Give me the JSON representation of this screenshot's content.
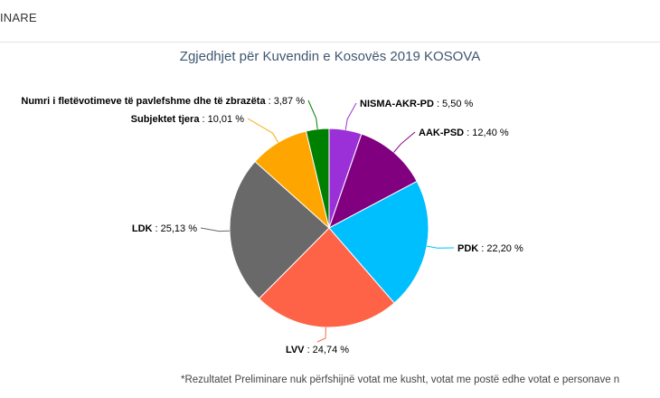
{
  "header": {
    "tab_label": "INARE"
  },
  "chart_data": {
    "type": "pie",
    "title": "Zgjedhjet për Kuvendin e Kosovës 2019 KOSOVA",
    "unit": "%",
    "slices": [
      {
        "name": "NISMA-AKR-PD",
        "value": 5.5,
        "value_label": "5,50 %",
        "color": "#9b30d9"
      },
      {
        "name": "AAK-PSD",
        "value": 12.4,
        "value_label": "12,40 %",
        "color": "#800080"
      },
      {
        "name": "PDK",
        "value": 22.2,
        "value_label": "22,20 %",
        "color": "#00bfff"
      },
      {
        "name": "LVV",
        "value": 24.74,
        "value_label": "24,74 %",
        "color": "#ff6347"
      },
      {
        "name": "LDK",
        "value": 25.13,
        "value_label": "25,13 %",
        "color": "#696969"
      },
      {
        "name": "Subjektet tjera",
        "value": 10.01,
        "value_label": "10,01 %",
        "color": "#ffa500"
      },
      {
        "name": "Numri i fletëvotimeve të pavlefshme dhe të zbrazëta",
        "value": 3.87,
        "value_label": "3,87 %",
        "color": "#008000"
      }
    ]
  },
  "footnote": "*Rezultatet Preliminare nuk përfshijnë votat me kusht, votat me postë edhe votat e personave n"
}
